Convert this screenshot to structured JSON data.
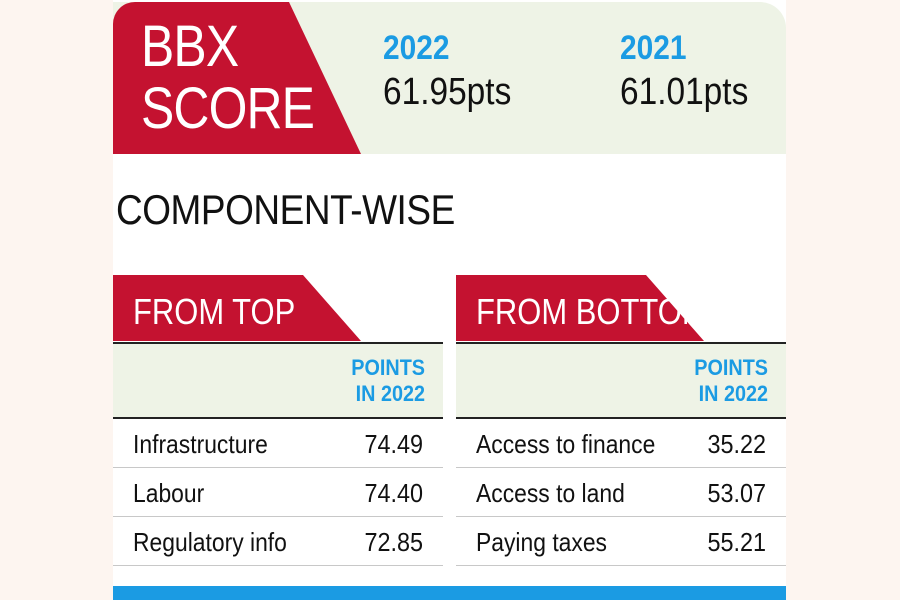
{
  "header": {
    "logo_line1": "BBX",
    "logo_line2": "SCORE",
    "years": [
      {
        "year": "2022",
        "value": "61.95pts"
      },
      {
        "year": "2021",
        "value": "61.01pts"
      }
    ]
  },
  "section_title": "COMPONENT-WISE",
  "colors": {
    "accent_red": "#c41230",
    "accent_blue": "#1b9be3",
    "band_green": "#eef3e6"
  },
  "panels": [
    {
      "title": "FROM TOP",
      "points_label_line1": "POINTS",
      "points_label_line2": "IN 2022",
      "rows": [
        {
          "name": "Infrastructure",
          "value": "74.49"
        },
        {
          "name": "Labour",
          "value": "74.40"
        },
        {
          "name": "Regulatory info",
          "value": "72.85"
        }
      ]
    },
    {
      "title": "FROM BOTTOM",
      "points_label_line1": "POINTS",
      "points_label_line2": "IN 2022",
      "rows": [
        {
          "name": "Access to finance",
          "value": "35.22"
        },
        {
          "name": "Access to land",
          "value": "53.07"
        },
        {
          "name": "Paying taxes",
          "value": "55.21"
        }
      ]
    }
  ]
}
